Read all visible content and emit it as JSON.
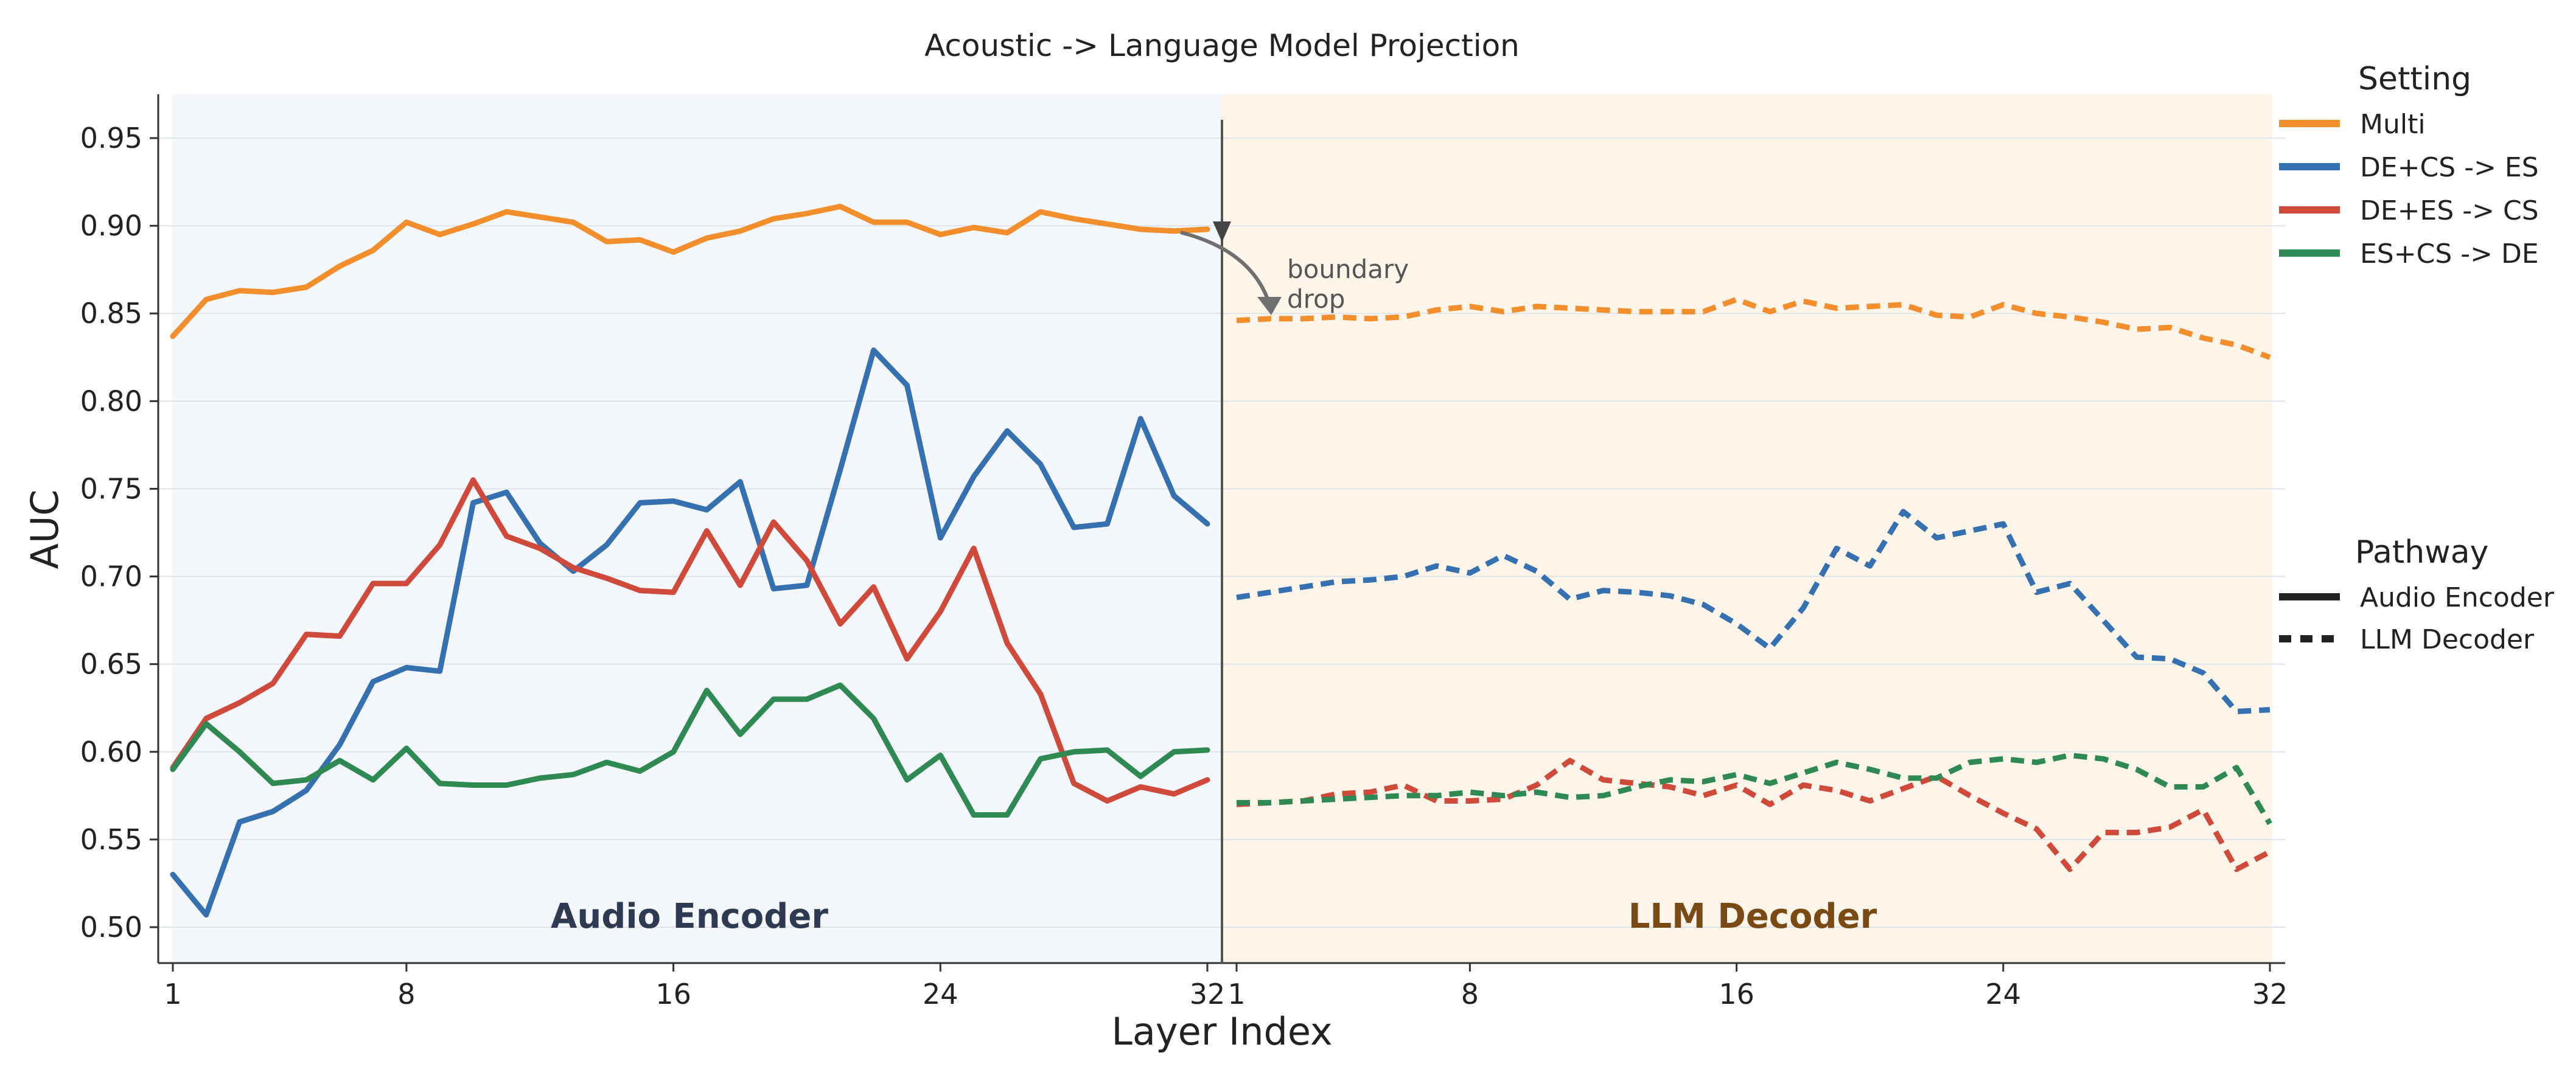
{
  "chart_data": {
    "type": "line",
    "title": "Acoustic -> Language Model Projection",
    "xlabel": "Layer Index",
    "ylabel": "AUC",
    "ylim": [
      0.48,
      0.975
    ],
    "yticks": [
      "0.50",
      "0.55",
      "0.60",
      "0.65",
      "0.70",
      "0.75",
      "0.80",
      "0.85",
      "0.90",
      "0.95"
    ],
    "grid": "horizontal",
    "panels": [
      {
        "name": "Audio Encoder",
        "linestyle": "solid",
        "background": "#f4f7fc",
        "label_color": "#2d3a52",
        "x": [
          1,
          32
        ],
        "xticks": [
          "1",
          "8",
          "16",
          "24",
          "32"
        ]
      },
      {
        "name": "LLM Decoder",
        "linestyle": "dashed",
        "background": "#fdf4ea",
        "label_color": "#7a4a14",
        "x": [
          1,
          32
        ],
        "xticks": [
          "1",
          "8",
          "16",
          "24",
          "32"
        ]
      }
    ],
    "annotation": {
      "text": [
        "boundary",
        "drop"
      ]
    },
    "legend": {
      "placement": "right",
      "setting_title": "Setting",
      "pathway_title": "Pathway",
      "pathway_items": [
        {
          "name": "Audio Encoder",
          "style": "solid"
        },
        {
          "name": "LLM Decoder",
          "style": "dashed"
        }
      ]
    },
    "series": [
      {
        "name": "Multi",
        "color": "#f28e2b",
        "audio_encoder": [
          0.837,
          0.858,
          0.863,
          0.862,
          0.865,
          0.877,
          0.886,
          0.902,
          0.895,
          0.901,
          0.908,
          0.905,
          0.902,
          0.891,
          0.892,
          0.885,
          0.893,
          0.897,
          0.904,
          0.907,
          0.911,
          0.902,
          0.902,
          0.895,
          0.899,
          0.896,
          0.908,
          0.904,
          0.901,
          0.898,
          0.897,
          0.898
        ],
        "llm_decoder": [
          0.846,
          0.847,
          0.847,
          0.848,
          0.847,
          0.848,
          0.852,
          0.854,
          0.851,
          0.854,
          0.853,
          0.852,
          0.851,
          0.851,
          0.851,
          0.858,
          0.851,
          0.857,
          0.853,
          0.854,
          0.855,
          0.849,
          0.848,
          0.855,
          0.85,
          0.848,
          0.845,
          0.841,
          0.842,
          0.836,
          0.832,
          0.825
        ]
      },
      {
        "name": "DE+CS -> ES",
        "color": "#3570b0",
        "audio_encoder": [
          0.53,
          0.507,
          0.56,
          0.566,
          0.578,
          0.604,
          0.64,
          0.648,
          0.646,
          0.742,
          0.748,
          0.719,
          0.703,
          0.718,
          0.742,
          0.743,
          0.738,
          0.754,
          0.693,
          0.695,
          0.761,
          0.829,
          0.809,
          0.722,
          0.757,
          0.783,
          0.764,
          0.728,
          0.73,
          0.79,
          0.746,
          0.73
        ],
        "llm_decoder": [
          0.688,
          0.691,
          0.694,
          0.697,
          0.698,
          0.7,
          0.706,
          0.702,
          0.712,
          0.703,
          0.687,
          0.692,
          0.691,
          0.689,
          0.684,
          0.673,
          0.659,
          0.682,
          0.716,
          0.706,
          0.737,
          0.722,
          0.726,
          0.73,
          0.691,
          0.696,
          0.675,
          0.654,
          0.653,
          0.645,
          0.623,
          0.624
        ]
      },
      {
        "name": "DE+ES -> CS",
        "color": "#d04a3c",
        "audio_encoder": [
          0.591,
          0.619,
          0.628,
          0.639,
          0.667,
          0.666,
          0.696,
          0.696,
          0.718,
          0.755,
          0.723,
          0.716,
          0.705,
          0.699,
          0.692,
          0.691,
          0.726,
          0.695,
          0.731,
          0.709,
          0.673,
          0.694,
          0.653,
          0.68,
          0.716,
          0.662,
          0.633,
          0.582,
          0.572,
          0.58,
          0.576,
          0.584
        ],
        "llm_decoder": [
          0.57,
          0.571,
          0.572,
          0.576,
          0.577,
          0.581,
          0.572,
          0.572,
          0.573,
          0.581,
          0.595,
          0.584,
          0.582,
          0.58,
          0.575,
          0.581,
          0.57,
          0.581,
          0.578,
          0.572,
          0.579,
          0.586,
          0.575,
          0.565,
          0.556,
          0.533,
          0.554,
          0.554,
          0.557,
          0.567,
          0.533,
          0.543
        ]
      },
      {
        "name": "ES+CS -> DE",
        "color": "#2e8a52",
        "audio_encoder": [
          0.59,
          0.616,
          0.6,
          0.582,
          0.584,
          0.595,
          0.584,
          0.602,
          0.582,
          0.581,
          0.581,
          0.585,
          0.587,
          0.594,
          0.589,
          0.6,
          0.635,
          0.61,
          0.63,
          0.63,
          0.638,
          0.619,
          0.584,
          0.598,
          0.564,
          0.564,
          0.596,
          0.6,
          0.601,
          0.586,
          0.6,
          0.601
        ],
        "llm_decoder": [
          0.571,
          0.571,
          0.572,
          0.573,
          0.574,
          0.575,
          0.575,
          0.577,
          0.575,
          0.577,
          0.574,
          0.575,
          0.58,
          0.584,
          0.583,
          0.587,
          0.582,
          0.588,
          0.594,
          0.59,
          0.585,
          0.585,
          0.594,
          0.596,
          0.594,
          0.598,
          0.596,
          0.59,
          0.58,
          0.58,
          0.591,
          0.559
        ]
      }
    ]
  }
}
